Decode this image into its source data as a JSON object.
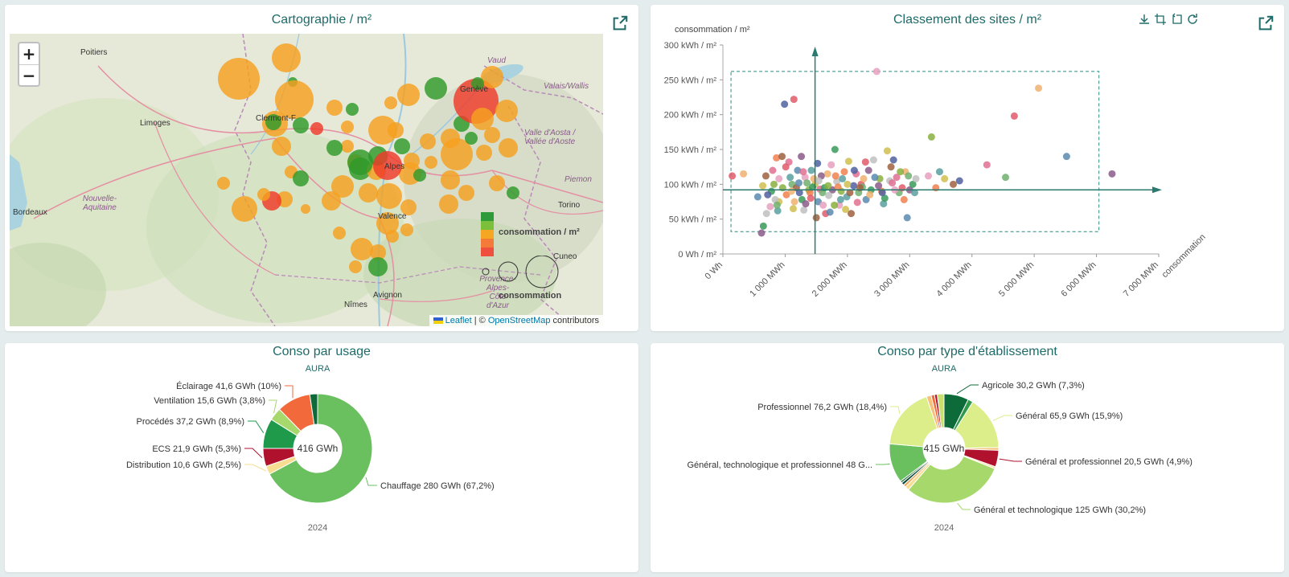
{
  "map_card": {
    "title": "Cartographie / m²",
    "zoom_in": "+",
    "zoom_out": "−",
    "attribution": {
      "leaflet": "Leaflet",
      "sep": " | © ",
      "osm": "OpenStreetMap",
      "suffix": " contributors"
    },
    "legend_color_label": "consommation / m²",
    "legend_size_label": "consommation",
    "cities": [
      "Poitiers",
      "Limoges",
      "Bordeaux",
      "Clermont-F",
      "Valence",
      "Avignon",
      "Nîmes",
      "Torino",
      "Cuneo",
      "Vaud",
      "Piemon",
      "Genève",
      "Alpes"
    ],
    "regions": [
      "Nouvelle-Aquitaine",
      "Provence-Alpes-Côte d'Azur",
      "Valais/Wallis",
      "Valle d'Aosta / Vallée d'Aoste"
    ],
    "legend_colors": [
      "#2e9a3a",
      "#7bbf3a",
      "#f5a623",
      "#f47a3a",
      "#ef4f3f"
    ]
  },
  "scatter_card": {
    "title": "Classement des sites / m²",
    "icons": [
      "download-icon",
      "zoom-select-icon",
      "zoom-back-icon",
      "refresh-icon"
    ]
  },
  "usage_card": {
    "title": "Conso par usage",
    "subtitle": "AURA",
    "year": "2024",
    "center": "416 GWh"
  },
  "type_card": {
    "title": "Conso par type d'établissement",
    "subtitle": "AURA",
    "year": "2024",
    "center": "415 GWh"
  },
  "chart_data": [
    {
      "type": "scatter",
      "title": "Classement des sites / m²",
      "ylabel": "consommation / m²",
      "xlabel": "consommation",
      "xlim": [
        0,
        7000
      ],
      "ylim": [
        0,
        300
      ],
      "x_ticks": [
        "0 Wh",
        "1 000 MWh",
        "2 000 MWh",
        "3 000 MWh",
        "4 000 MWh",
        "5 000 MWh",
        "6 000 MWh",
        "7 000 MWh"
      ],
      "y_ticks": [
        "0 Wh / m²",
        "50 kWh / m²",
        "100 kWh / m²",
        "150 kWh / m²",
        "200 kWh / m²",
        "250 kWh / m²",
        "300 kWh / m²"
      ],
      "points": [
        [
          150,
          112
        ],
        [
          330,
          115
        ],
        [
          560,
          82
        ],
        [
          620,
          30
        ],
        [
          650,
          40
        ],
        [
          700,
          58
        ],
        [
          760,
          68
        ],
        [
          820,
          100
        ],
        [
          860,
          138
        ],
        [
          880,
          62
        ],
        [
          900,
          75
        ],
        [
          950,
          140
        ],
        [
          990,
          215
        ],
        [
          1060,
          132
        ],
        [
          1110,
          100
        ],
        [
          1140,
          222
        ],
        [
          1150,
          75
        ],
        [
          1200,
          120
        ],
        [
          1260,
          140
        ],
        [
          1270,
          78
        ],
        [
          1300,
          63
        ],
        [
          1320,
          110
        ],
        [
          1380,
          92
        ],
        [
          1400,
          88
        ],
        [
          1420,
          120
        ],
        [
          1480,
          100
        ],
        [
          1500,
          52
        ],
        [
          1520,
          130
        ],
        [
          1560,
          93
        ],
        [
          1600,
          88
        ],
        [
          1650,
          58
        ],
        [
          1680,
          115
        ],
        [
          1720,
          60
        ],
        [
          1760,
          92
        ],
        [
          1800,
          150
        ],
        [
          1830,
          104
        ],
        [
          1870,
          70
        ],
        [
          1900,
          90
        ],
        [
          1950,
          118
        ],
        [
          1990,
          82
        ],
        [
          2020,
          133
        ],
        [
          2060,
          58
        ],
        [
          2100,
          98
        ],
        [
          2140,
          115
        ],
        [
          2180,
          88
        ],
        [
          2220,
          100
        ],
        [
          2260,
          108
        ],
        [
          2300,
          78
        ],
        [
          2340,
          120
        ],
        [
          2380,
          92
        ],
        [
          2420,
          135
        ],
        [
          2470,
          262
        ],
        [
          2520,
          108
        ],
        [
          2550,
          90
        ],
        [
          2580,
          72
        ],
        [
          2640,
          148
        ],
        [
          2700,
          125
        ],
        [
          2740,
          135
        ],
        [
          2790,
          110
        ],
        [
          2830,
          88
        ],
        [
          2880,
          95
        ],
        [
          2930,
          118
        ],
        [
          2960,
          52
        ],
        [
          3000,
          92
        ],
        [
          3050,
          100
        ],
        [
          3100,
          108
        ],
        [
          3300,
          112
        ],
        [
          3350,
          168
        ],
        [
          3420,
          95
        ],
        [
          3480,
          118
        ],
        [
          3560,
          108
        ],
        [
          3700,
          100
        ],
        [
          3800,
          105
        ],
        [
          4240,
          128
        ],
        [
          4540,
          110
        ],
        [
          4680,
          198
        ],
        [
          5070,
          238
        ],
        [
          5520,
          140
        ],
        [
          6250,
          115
        ],
        [
          780,
          90
        ],
        [
          840,
          78
        ],
        [
          900,
          108
        ],
        [
          960,
          95
        ],
        [
          1020,
          85
        ],
        [
          1080,
          110
        ],
        [
          1130,
          65
        ],
        [
          1180,
          95
        ],
        [
          1230,
          88
        ],
        [
          1290,
          118
        ],
        [
          1350,
          102
        ],
        [
          1410,
          80
        ],
        [
          1460,
          108
        ],
        [
          1530,
          75
        ],
        [
          1580,
          112
        ],
        [
          1630,
          95
        ],
        [
          1700,
          84
        ],
        [
          1740,
          128
        ],
        [
          1790,
          70
        ],
        [
          1850,
          96
        ],
        [
          1920,
          108
        ],
        [
          1970,
          64
        ],
        [
          2040,
          88
        ],
        [
          2110,
          120
        ],
        [
          2160,
          74
        ],
        [
          2240,
          96
        ],
        [
          2290,
          132
        ],
        [
          2360,
          85
        ],
        [
          2440,
          110
        ],
        [
          2500,
          98
        ],
        [
          2600,
          80
        ],
        [
          2680,
          105
        ],
        [
          2760,
          92
        ],
        [
          2850,
          118
        ],
        [
          2910,
          78
        ],
        [
          3080,
          88
        ],
        [
          640,
          98
        ],
        [
          690,
          112
        ],
        [
          720,
          85
        ],
        [
          800,
          120
        ],
        [
          870,
          70
        ],
        [
          1010,
          125
        ],
        [
          1100,
          90
        ],
        [
          1220,
          102
        ],
        [
          1330,
          72
        ],
        [
          1440,
          96
        ],
        [
          1540,
          105
        ],
        [
          1610,
          70
        ],
        [
          1690,
          98
        ],
        [
          1810,
          112
        ],
        [
          1890,
          78
        ],
        [
          2000,
          100
        ],
        [
          2200,
          95
        ],
        [
          2560,
          88
        ],
        [
          2720,
          102
        ],
        [
          2980,
          112
        ]
      ],
      "point_colors": [
        "#e05a6a",
        "#f0b070",
        "#5a8ab0",
        "#8a5a8a",
        "#3a9a5a",
        "#c0c0c0",
        "#e8a0c0",
        "#8ab040",
        "#f08050",
        "#5aa0a0",
        "#d0c050",
        "#a06040",
        "#5060a0",
        "#e07090",
        "#70b070"
      ]
    },
    {
      "type": "pie",
      "title": "Conso par usage",
      "subtitle": "AURA",
      "center": "416 GWh",
      "slices": [
        {
          "label": "Chauffage 280 GWh (67,2%)",
          "value": 67.2,
          "color": "#6abf5e"
        },
        {
          "label": "Distribution 10,6 GWh (2,5%)",
          "value": 2.5,
          "color": "#f7dd92"
        },
        {
          "label": "ECS 21,9 GWh (5,3%)",
          "value": 5.3,
          "color": "#b0122e"
        },
        {
          "label": "Procédés 37,2 GWh (8,9%)",
          "value": 8.9,
          "color": "#1e9a4a"
        },
        {
          "label": "Ventilation 15,6 GWh (3,8%)",
          "value": 3.8,
          "color": "#a6d86c"
        },
        {
          "label": "Éclairage 41,6 GWh (10%)",
          "value": 10.0,
          "color": "#f26a3c"
        },
        {
          "label": "",
          "value": 2.3,
          "color": "#0d6b3a"
        }
      ]
    },
    {
      "type": "pie",
      "title": "Conso par type d'établissement",
      "subtitle": "AURA",
      "center": "415 GWh",
      "slices": [
        {
          "label": "Agricole 30,2 GWh (7,3%)",
          "value": 7.3,
          "color": "#0d6b3a"
        },
        {
          "label": "",
          "value": 1.5,
          "color": "#2e9a4a"
        },
        {
          "label": "Général 65,9 GWh (15,9%)",
          "value": 15.9,
          "color": "#dcee8a"
        },
        {
          "label": "",
          "value": 0.8,
          "color": "#f7c07a"
        },
        {
          "label": "Général et professionnel 20,5 GWh (4,9%)",
          "value": 4.9,
          "color": "#b0122e"
        },
        {
          "label": "",
          "value": 0.6,
          "color": "#f7e2a0"
        },
        {
          "label": "Général et technologique 125 GWh (30,2%)",
          "value": 30.2,
          "color": "#a6d86c"
        },
        {
          "label": "",
          "value": 1.2,
          "color": "#f7dd92"
        },
        {
          "label": "",
          "value": 0.8,
          "color": "#e8a860"
        },
        {
          "label": "",
          "value": 0.8,
          "color": "#0d4b3a"
        },
        {
          "label": "",
          "value": 0.6,
          "color": "#2e7a4a"
        },
        {
          "label": "Général, technologique et professionnel 48 G...",
          "value": 11.6,
          "color": "#6abf5e"
        },
        {
          "label": "Professionnel 76,2 GWh (18,4%)",
          "value": 18.4,
          "color": "#dcee8a"
        },
        {
          "label": "",
          "value": 1.4,
          "color": "#f7c07a"
        },
        {
          "label": "",
          "value": 1.0,
          "color": "#f26a3c"
        },
        {
          "label": "",
          "value": 0.8,
          "color": "#b0122e"
        },
        {
          "label": "",
          "value": 2.0,
          "color": "#c8e070"
        }
      ]
    }
  ]
}
